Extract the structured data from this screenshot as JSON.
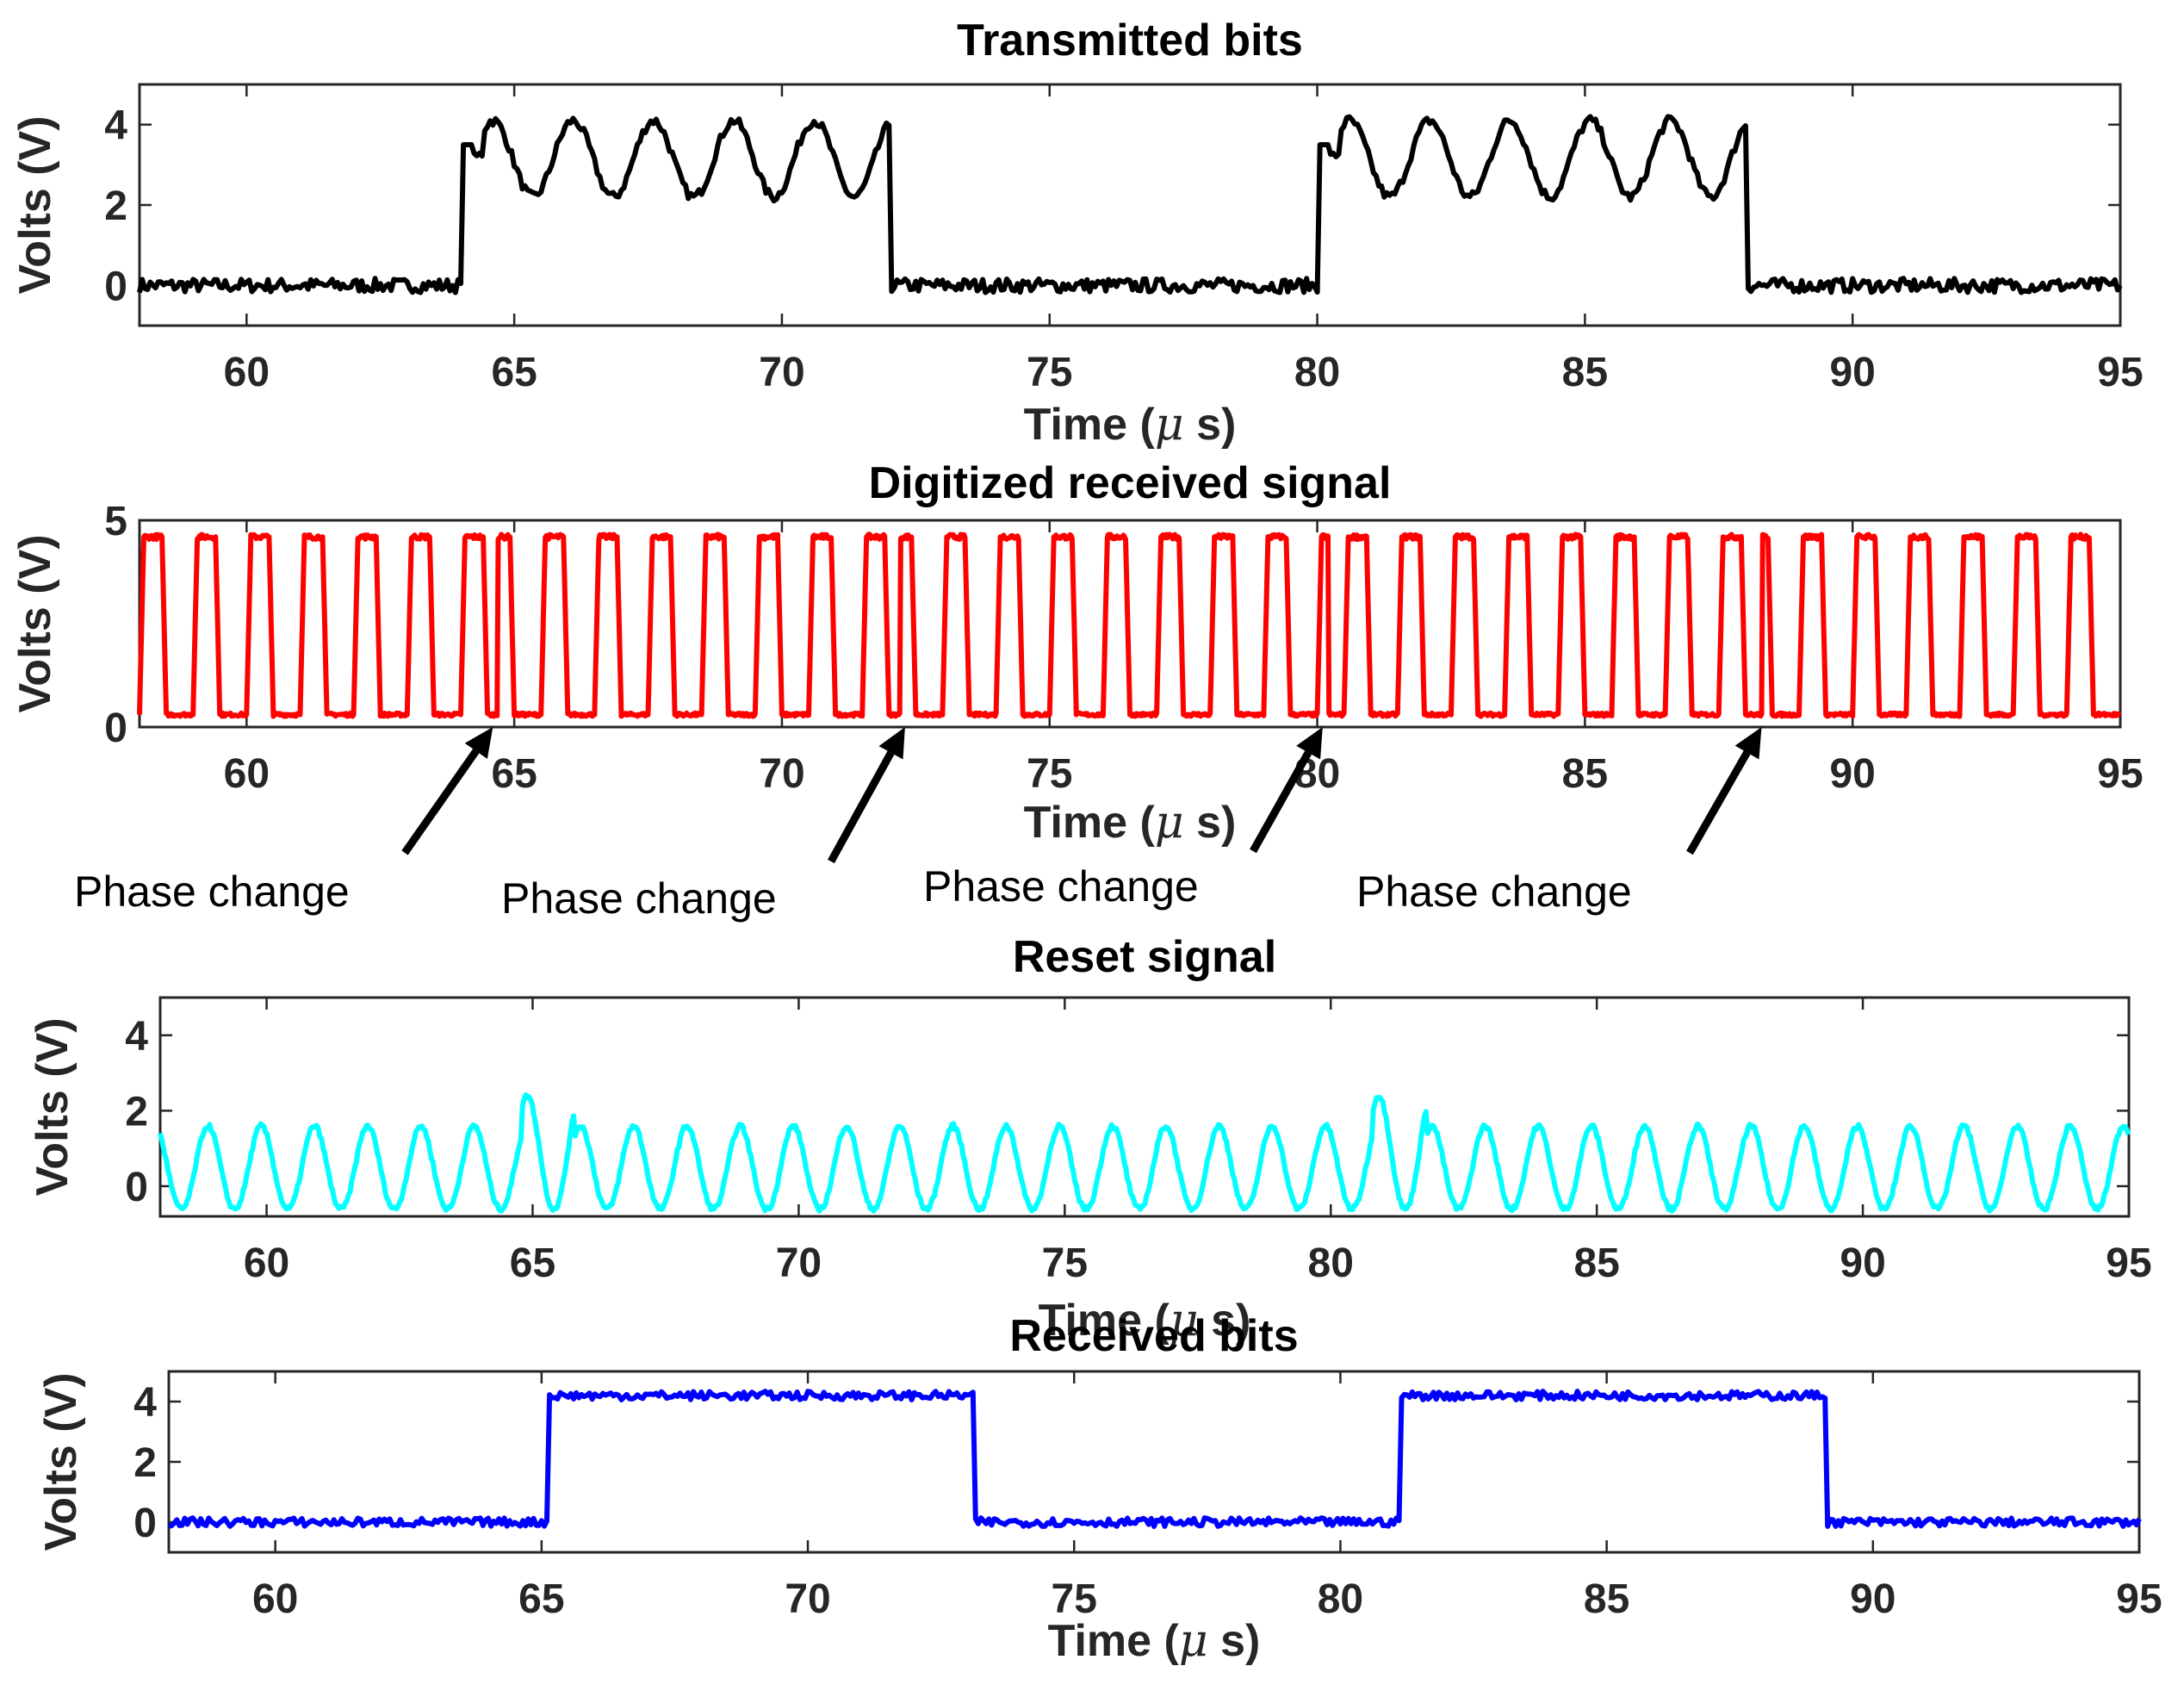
{
  "chart_data": [
    {
      "type": "line",
      "title": "Transmitted bits",
      "xlabel": "Time ($\\mu$ s)",
      "ylabel": "Volts (V)",
      "xlim": [
        58,
        95
      ],
      "ylim": [
        -1,
        5
      ],
      "xticks": [
        60,
        65,
        70,
        75,
        80,
        85,
        90,
        95
      ],
      "yticks": [
        0,
        2,
        4
      ],
      "grid": false,
      "series": [
        {
          "color": "#000000",
          "bits": [
            {
              "start": 64.0,
              "end": 72.0
            },
            {
              "start": 80.0,
              "end": 88.0
            }
          ],
          "low_level": 0,
          "high_top": 4.1,
          "high_trough": 2.2,
          "ripple_period": 1.5,
          "x": [
            58,
            60,
            62,
            63.9,
            64.0,
            64.3,
            64.6,
            65.0,
            65.7,
            66.5,
            67.2,
            68.0,
            68.8,
            69.5,
            70.2,
            71.0,
            71.6,
            72.0,
            72.2,
            75,
            79.9,
            80.0,
            80.5,
            81.0,
            82.0,
            83.5,
            85.0,
            86.5,
            87.5,
            88.0,
            88.1,
            90,
            95
          ],
          "y": [
            0,
            0,
            0,
            0,
            3.6,
            3.9,
            2.4,
            4.1,
            2.3,
            4.2,
            2.0,
            4.2,
            2.1,
            4.2,
            2.0,
            4.1,
            1.8,
            1.7,
            0,
            0,
            0,
            3.5,
            3.8,
            2.6,
            4.1,
            4.2,
            4.1,
            4.1,
            4.0,
            2.0,
            -0.7,
            0,
            0
          ]
        }
      ]
    },
    {
      "type": "line",
      "title": "Digitized received signal",
      "xlabel": "Time ($\\mu$ s)",
      "ylabel": "Volts (V)",
      "xlim": [
        58,
        95
      ],
      "ylim": [
        0,
        5
      ],
      "xticks": [
        60,
        65,
        70,
        75,
        80,
        85,
        90,
        95
      ],
      "yticks": [
        0,
        5
      ],
      "grid": false,
      "series": [
        {
          "color": "#ff0000",
          "period_us": 1.0,
          "low": 0.3,
          "high": 4.6,
          "phase_changes_at": [
            64.7,
            72.2,
            80.2,
            88.3
          ]
        }
      ],
      "annotations": [
        "Phase change",
        "Phase change",
        "Phase change",
        "Phase change"
      ]
    },
    {
      "type": "line",
      "title": "Reset signal",
      "xlabel": "Time ($\\mu$ s)",
      "ylabel": "Volts (V)",
      "xlim": [
        58,
        95
      ],
      "ylim": [
        -0.8,
        5
      ],
      "xticks": [
        60,
        65,
        70,
        75,
        80,
        85,
        90,
        95
      ],
      "yticks": [
        0,
        2,
        4
      ],
      "grid": false,
      "series": [
        {
          "color": "#00ffff",
          "period_us": 1.0,
          "baseline": -0.6,
          "peak": 1.6,
          "tall_peaks": [
            {
              "x": 65.3,
              "y": 2.4
            },
            {
              "x": 81.3,
              "y": 2.4
            }
          ]
        }
      ]
    },
    {
      "type": "line",
      "title": "Received bits",
      "xlabel": "Time ($\\mu$ s)",
      "ylabel": "Volts (V)",
      "xlim": [
        58,
        95
      ],
      "ylim": [
        -1,
        5
      ],
      "xticks": [
        60,
        65,
        70,
        75,
        80,
        85,
        90,
        95
      ],
      "yticks": [
        0,
        2,
        4
      ],
      "grid": false,
      "series": [
        {
          "color": "#0000ff",
          "bits": [
            {
              "start": 65.1,
              "end": 73.1
            },
            {
              "start": 81.1,
              "end": 89.1
            }
          ],
          "low_level": 0,
          "high_level": 4.2
        }
      ]
    }
  ]
}
